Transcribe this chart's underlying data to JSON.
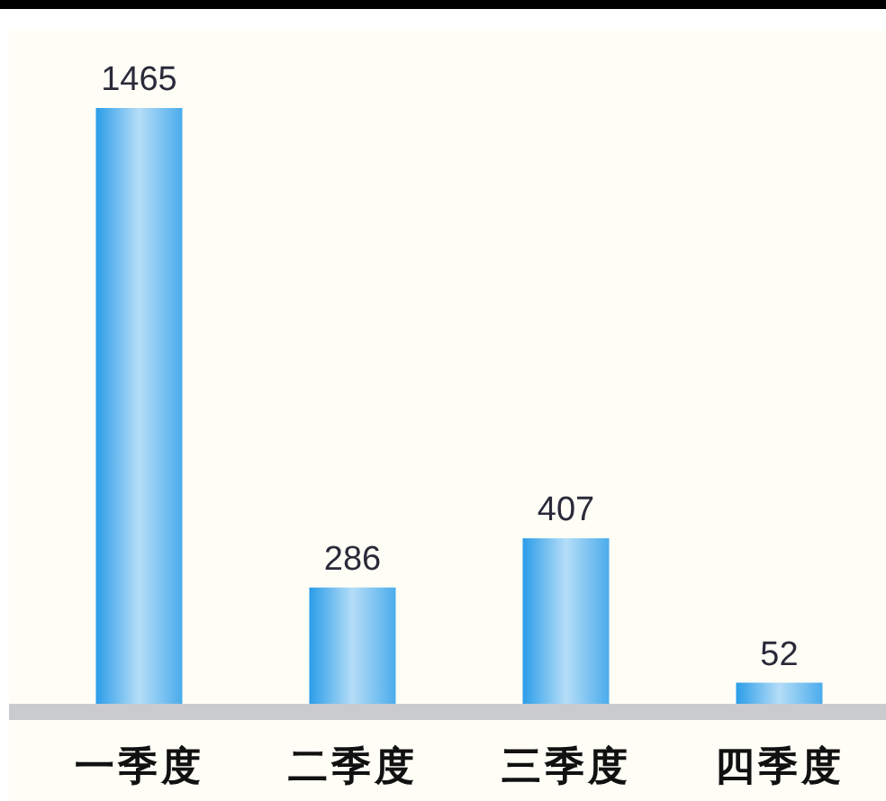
{
  "chart_data": {
    "type": "bar",
    "categories": [
      "一季度",
      "二季度",
      "三季度",
      "四季度"
    ],
    "values": [
      1465,
      286,
      407,
      52
    ],
    "color": "#2b9de9",
    "data_labels": true
  }
}
